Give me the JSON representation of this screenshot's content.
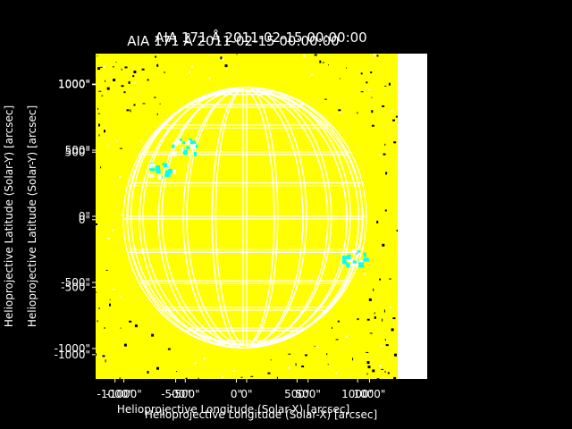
{
  "chart_data": {
    "type": "heatmap",
    "colors": {
      "background": "#000000",
      "image": "#ffff00",
      "grid": "#ffffff",
      "active": "#00ffff",
      "text": "#ffffff"
    },
    "layers": [
      {
        "title": "AIA 171 Å 2011-02-15 00:00:00",
        "xlabel": "Helioprojective Longitude (Solar-X) [arcsec]",
        "ylabel": "Helioprojective Latitude (Solar-Y) [arcsec]",
        "xlim": [
          -1230,
          1230
        ],
        "ylim": [
          -1230,
          1230
        ],
        "xticks": [
          {
            "v": -1000,
            "label": "-1000\""
          },
          {
            "v": -500,
            "label": "-500\""
          },
          {
            "v": 0,
            "label": "0\""
          },
          {
            "v": 500,
            "label": "500\""
          },
          {
            "v": 1000,
            "label": "1000\""
          }
        ],
        "yticks": [
          {
            "v": -1000,
            "label": "-1000\""
          },
          {
            "v": -500,
            "label": "-500\""
          },
          {
            "v": 0,
            "label": "0\""
          },
          {
            "v": 500,
            "label": "500\""
          },
          {
            "v": 1000,
            "label": "1000\""
          }
        ]
      },
      {
        "title": "AIA 171 Å 2011-02-15 00:00:00",
        "xlabel": "Helioprojective Longitude (Solar-X) [arcsec]",
        "ylabel": "Helioprojective Latitude (Solar-Y) [arcsec]",
        "xlim": [
          -1160,
          1330
        ],
        "ylim": [
          -1180,
          1230
        ],
        "xticks": [
          {
            "v": -1000,
            "label": "-1000\""
          },
          {
            "v": -500,
            "label": "-500\""
          },
          {
            "v": 0,
            "label": "0\""
          },
          {
            "v": 500,
            "label": "500\""
          },
          {
            "v": 1000,
            "label": "1000\""
          }
        ],
        "yticks": [
          {
            "v": -1000,
            "label": "-1000\""
          },
          {
            "v": -500,
            "label": "-500\""
          },
          {
            "v": 0,
            "label": "0\""
          },
          {
            "v": 500,
            "label": "500\""
          },
          {
            "v": 1000,
            "label": "1000\""
          }
        ]
      }
    ],
    "solar_radius_arcsec": 975,
    "grid_spacing_deg": 15,
    "active_regions": [
      {
        "x": -700,
        "y": 350
      },
      {
        "x": -520,
        "y": 540
      },
      {
        "x": 880,
        "y": -310
      }
    ]
  }
}
